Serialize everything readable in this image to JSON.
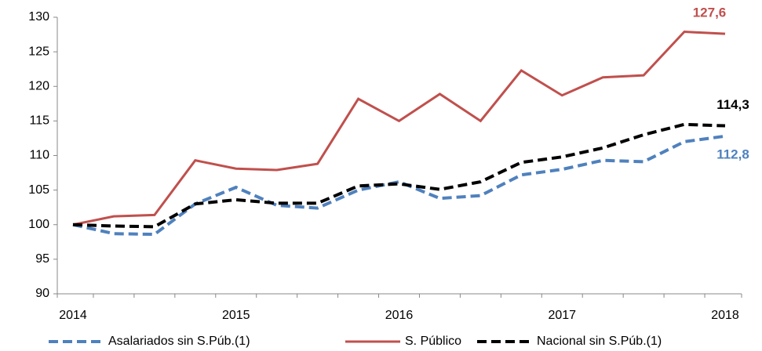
{
  "chart_data": {
    "type": "line",
    "categories": [
      "2014",
      null,
      null,
      null,
      "2015",
      null,
      null,
      null,
      "2016",
      null,
      null,
      null,
      "2017",
      null,
      null,
      null,
      "2018"
    ],
    "series": [
      {
        "name": "Asalariados sin S.Púb.(1)",
        "color": "#4f81bd",
        "dashed": true,
        "values": [
          100,
          98.7,
          98.6,
          103.0,
          105.4,
          102.8,
          102.4,
          105.0,
          106.2,
          103.8,
          104.2,
          107.2,
          108.0,
          109.3,
          109.1,
          112.0,
          112.8
        ],
        "value_labels": [
          null,
          null,
          null,
          null,
          null,
          null,
          null,
          null,
          null,
          null,
          null,
          null,
          null,
          null,
          null,
          null,
          "112,8"
        ]
      },
      {
        "name": "S. Público",
        "color": "#c0504d",
        "dashed": false,
        "values": [
          100,
          101.2,
          101.4,
          109.3,
          108.1,
          107.9,
          108.8,
          118.2,
          115.0,
          118.9,
          115.0,
          122.3,
          118.7,
          121.3,
          121.6,
          127.9,
          127.6
        ],
        "value_labels": [
          null,
          null,
          null,
          null,
          null,
          null,
          null,
          null,
          null,
          null,
          null,
          null,
          null,
          null,
          null,
          null,
          "127,6"
        ]
      },
      {
        "name": "Nacional sin S.Púb.(1)",
        "color": "#000000",
        "dashed": true,
        "values": [
          100,
          99.8,
          99.7,
          103.0,
          103.6,
          103.1,
          103.1,
          105.6,
          105.9,
          105.1,
          106.2,
          109.0,
          109.8,
          111.1,
          113.0,
          114.5,
          114.3
        ],
        "value_labels": [
          null,
          null,
          null,
          null,
          null,
          null,
          null,
          null,
          null,
          null,
          null,
          null,
          null,
          null,
          null,
          null,
          "114,3"
        ]
      }
    ],
    "ylim": [
      90,
      130
    ],
    "yticks": [
      90,
      95,
      100,
      105,
      110,
      115,
      120,
      125,
      130
    ],
    "grid": false,
    "legend": "bottom"
  }
}
